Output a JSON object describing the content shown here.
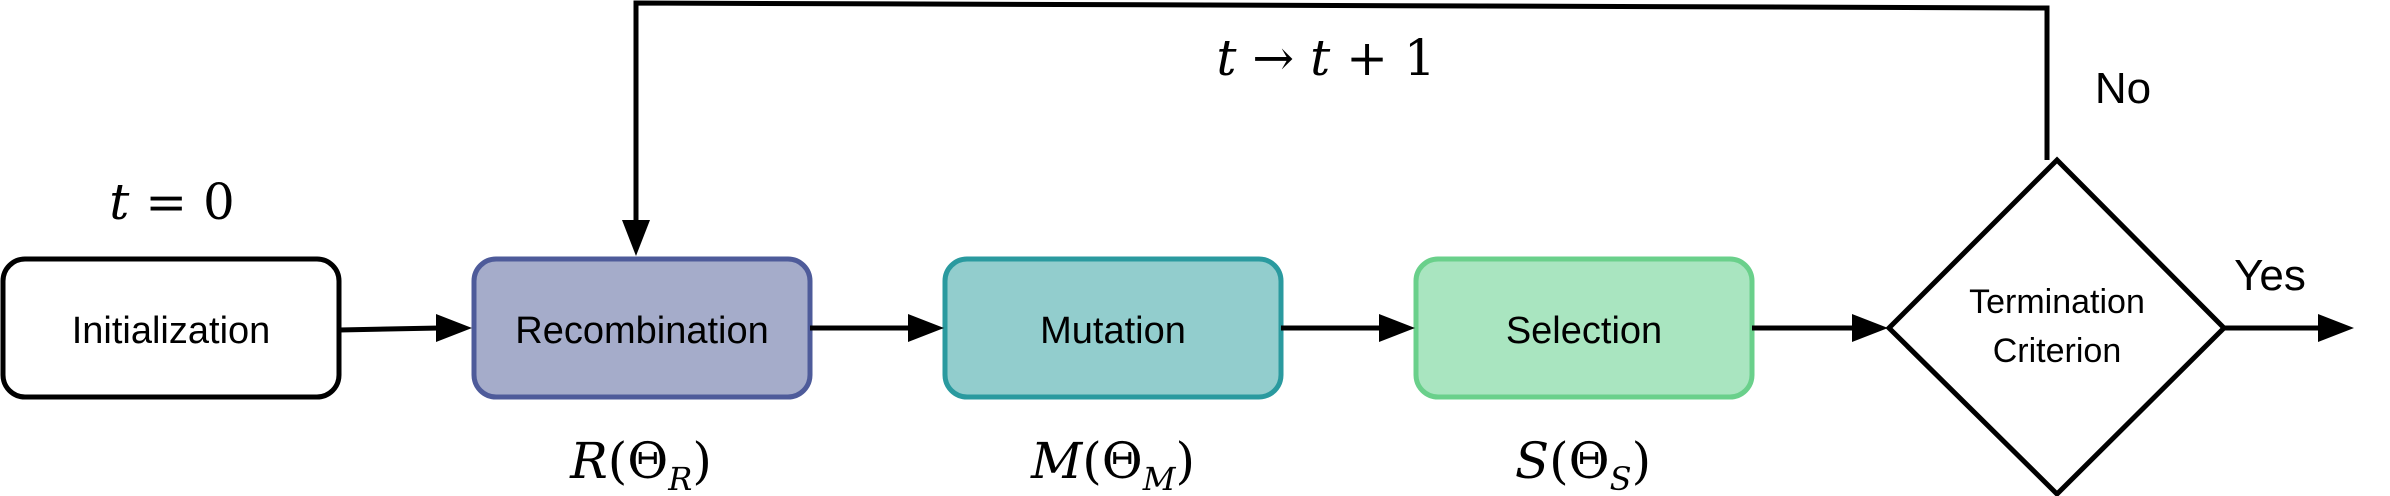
{
  "nodes": {
    "initialization": {
      "label": "Initialization",
      "fill": "#ffffff",
      "stroke": "#000000"
    },
    "recombination": {
      "label": "Recombination",
      "fill": "#a5acca",
      "stroke": "#4e5b9a"
    },
    "mutation": {
      "label": "Mutation",
      "fill": "#92cdcd",
      "stroke": "#2a9a9f"
    },
    "selection": {
      "label": "Selection",
      "fill": "#a9e5c0",
      "stroke": "#6ad08b"
    },
    "termination": {
      "label_line1": "Termination",
      "label_line2": "Criterion"
    }
  },
  "annotations": {
    "init_time": {
      "lhs": "t",
      "op": " = ",
      "rhs": "0"
    },
    "loop": {
      "lhs": "t",
      "arrow": " → ",
      "rhs": "t",
      "plus": " + 1"
    },
    "recomb_param": {
      "fn": "R",
      "open": "(",
      "theta": "Θ",
      "sub": "R",
      "close": ")"
    },
    "mutation_param": {
      "fn": "M",
      "open": "(",
      "theta": "Θ",
      "sub": "M",
      "close": ")"
    },
    "selection_param": {
      "fn": "S",
      "open": "(",
      "theta": "Θ",
      "sub": "S",
      "close": ")"
    }
  },
  "branches": {
    "no": "No",
    "yes": "Yes"
  }
}
